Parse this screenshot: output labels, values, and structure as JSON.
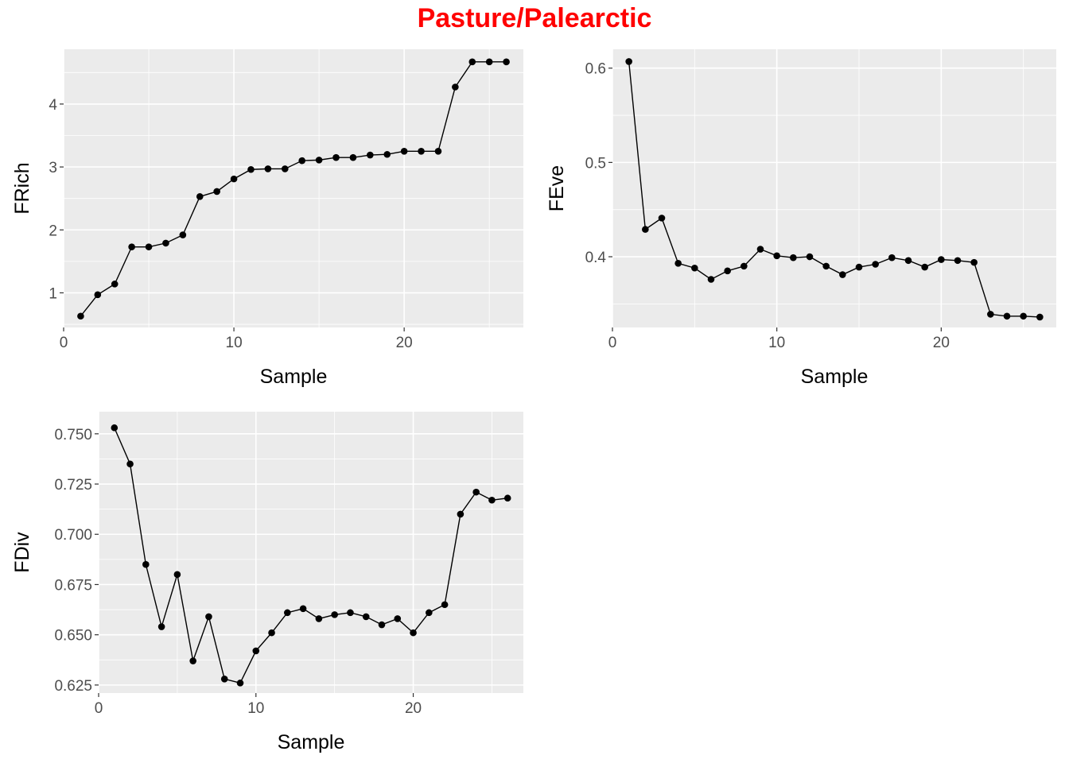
{
  "title": "Pasture/Palearctic",
  "colors": {
    "title": "#ff0000",
    "panel_background": "#ebebeb",
    "grid": "#ffffff",
    "series": "#000000",
    "tick_text": "#4d4d4d"
  },
  "chart_data": [
    {
      "type": "line",
      "xlabel": "Sample",
      "ylabel": "FRich",
      "xlim": [
        0,
        27
      ],
      "ylim": [
        0.45,
        4.87
      ],
      "xticks": [
        0,
        10,
        20
      ],
      "yticks": [
        1,
        2,
        3,
        4
      ],
      "x": [
        1,
        2,
        3,
        4,
        5,
        6,
        7,
        8,
        9,
        10,
        11,
        12,
        13,
        14,
        15,
        16,
        17,
        18,
        19,
        20,
        21,
        22,
        23,
        24,
        25,
        26
      ],
      "series": [
        {
          "values": [
            0.63,
            0.97,
            1.14,
            1.73,
            1.73,
            1.79,
            1.92,
            2.53,
            2.61,
            2.81,
            2.96,
            2.97,
            2.97,
            3.1,
            3.11,
            3.15,
            3.15,
            3.19,
            3.2,
            3.25,
            3.25,
            3.25,
            4.27,
            4.67,
            4.67,
            4.67
          ]
        }
      ]
    },
    {
      "type": "line",
      "xlabel": "Sample",
      "ylabel": "FEve",
      "xlim": [
        0,
        27
      ],
      "ylim": [
        0.325,
        0.62
      ],
      "xticks": [
        0,
        10,
        20
      ],
      "yticks": [
        0.4,
        0.5,
        0.6
      ],
      "x": [
        1,
        2,
        3,
        4,
        5,
        6,
        7,
        8,
        9,
        10,
        11,
        12,
        13,
        14,
        15,
        16,
        17,
        18,
        19,
        20,
        21,
        22,
        23,
        24,
        25,
        26
      ],
      "series": [
        {
          "values": [
            0.607,
            0.429,
            0.441,
            0.393,
            0.388,
            0.376,
            0.385,
            0.39,
            0.408,
            0.401,
            0.399,
            0.4,
            0.39,
            0.381,
            0.389,
            0.392,
            0.399,
            0.396,
            0.389,
            0.397,
            0.396,
            0.394,
            0.339,
            0.337,
            0.337,
            0.336
          ]
        }
      ]
    },
    {
      "type": "line",
      "xlabel": "Sample",
      "ylabel": "FDiv",
      "xlim": [
        0,
        27
      ],
      "ylim": [
        0.621,
        0.761
      ],
      "xticks": [
        0,
        10,
        20
      ],
      "yticks": [
        0.625,
        0.65,
        0.675,
        0.7,
        0.725,
        0.75
      ],
      "ytick_labels": [
        "0.625",
        "0.650",
        "0.675",
        "0.700",
        "0.725",
        "0.750"
      ],
      "x": [
        1,
        2,
        3,
        4,
        5,
        6,
        7,
        8,
        9,
        10,
        11,
        12,
        13,
        14,
        15,
        16,
        17,
        18,
        19,
        20,
        21,
        22,
        23,
        24,
        25,
        26
      ],
      "series": [
        {
          "values": [
            0.753,
            0.735,
            0.685,
            0.654,
            0.68,
            0.637,
            0.659,
            0.628,
            0.626,
            0.642,
            0.651,
            0.661,
            0.663,
            0.658,
            0.66,
            0.661,
            0.659,
            0.655,
            0.658,
            0.651,
            0.661,
            0.665,
            0.71,
            0.721,
            0.717,
            0.718
          ]
        }
      ]
    }
  ]
}
